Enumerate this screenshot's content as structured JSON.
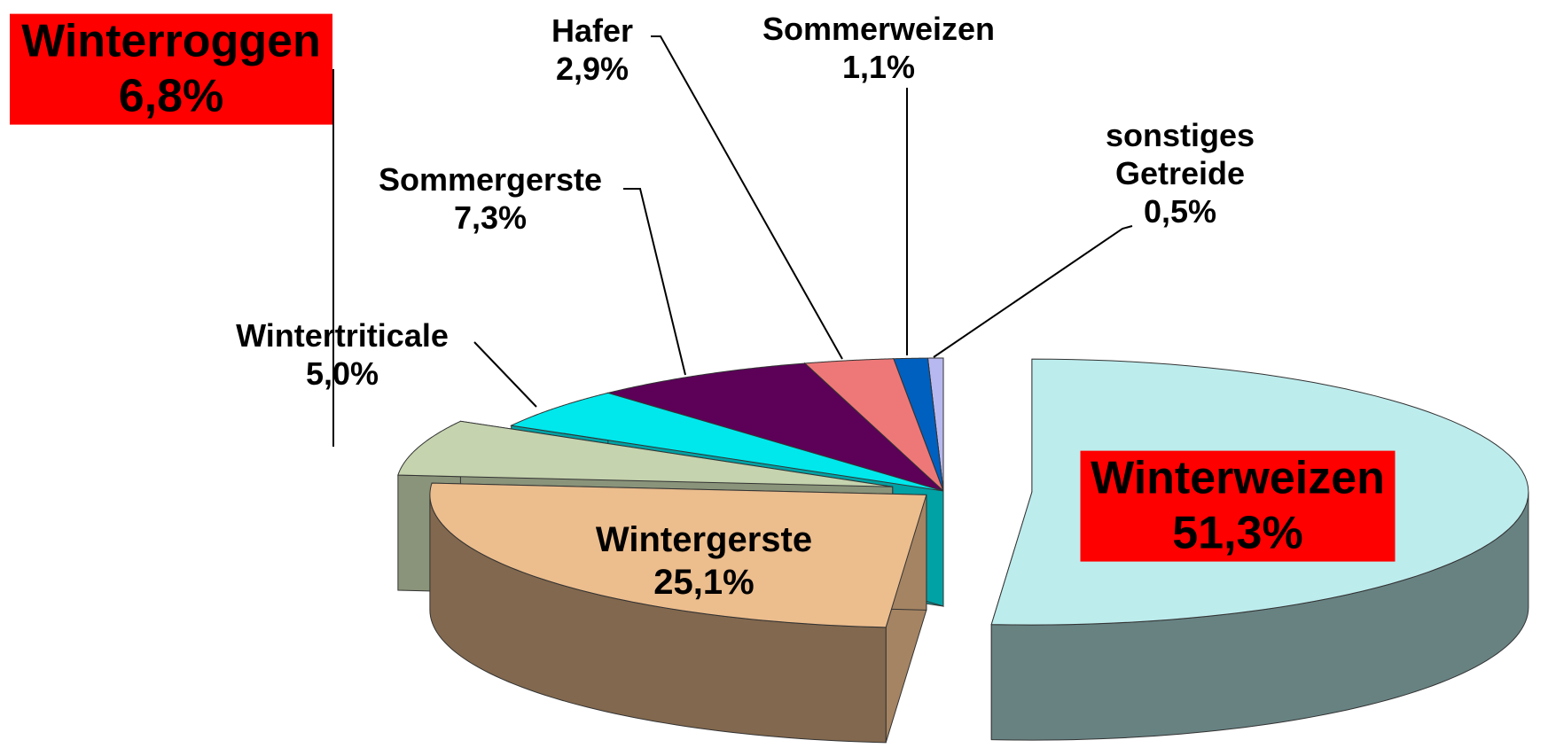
{
  "chart_data": {
    "type": "pie3d",
    "categories": [
      "Winterweizen",
      "Wintergerste",
      "Winterroggen",
      "Wintertriticale",
      "Sommergerste",
      "Hafer",
      "Sommerweizen",
      "sonstiges Getreide"
    ],
    "values": [
      51.3,
      25.1,
      6.8,
      5.0,
      7.3,
      2.9,
      1.1,
      0.5
    ],
    "value_labels": [
      "51,3%",
      "25,1%",
      "6,8%",
      "5,0%",
      "7,3%",
      "2,9%",
      "1,1%",
      "0,5%"
    ],
    "colors": [
      "#bdeced",
      "#ecbd8d",
      "#c5d3ae",
      "#00e8ec",
      "#5c0058",
      "#ee7878",
      "#0060c0",
      "#b8b8f0"
    ]
  }
}
